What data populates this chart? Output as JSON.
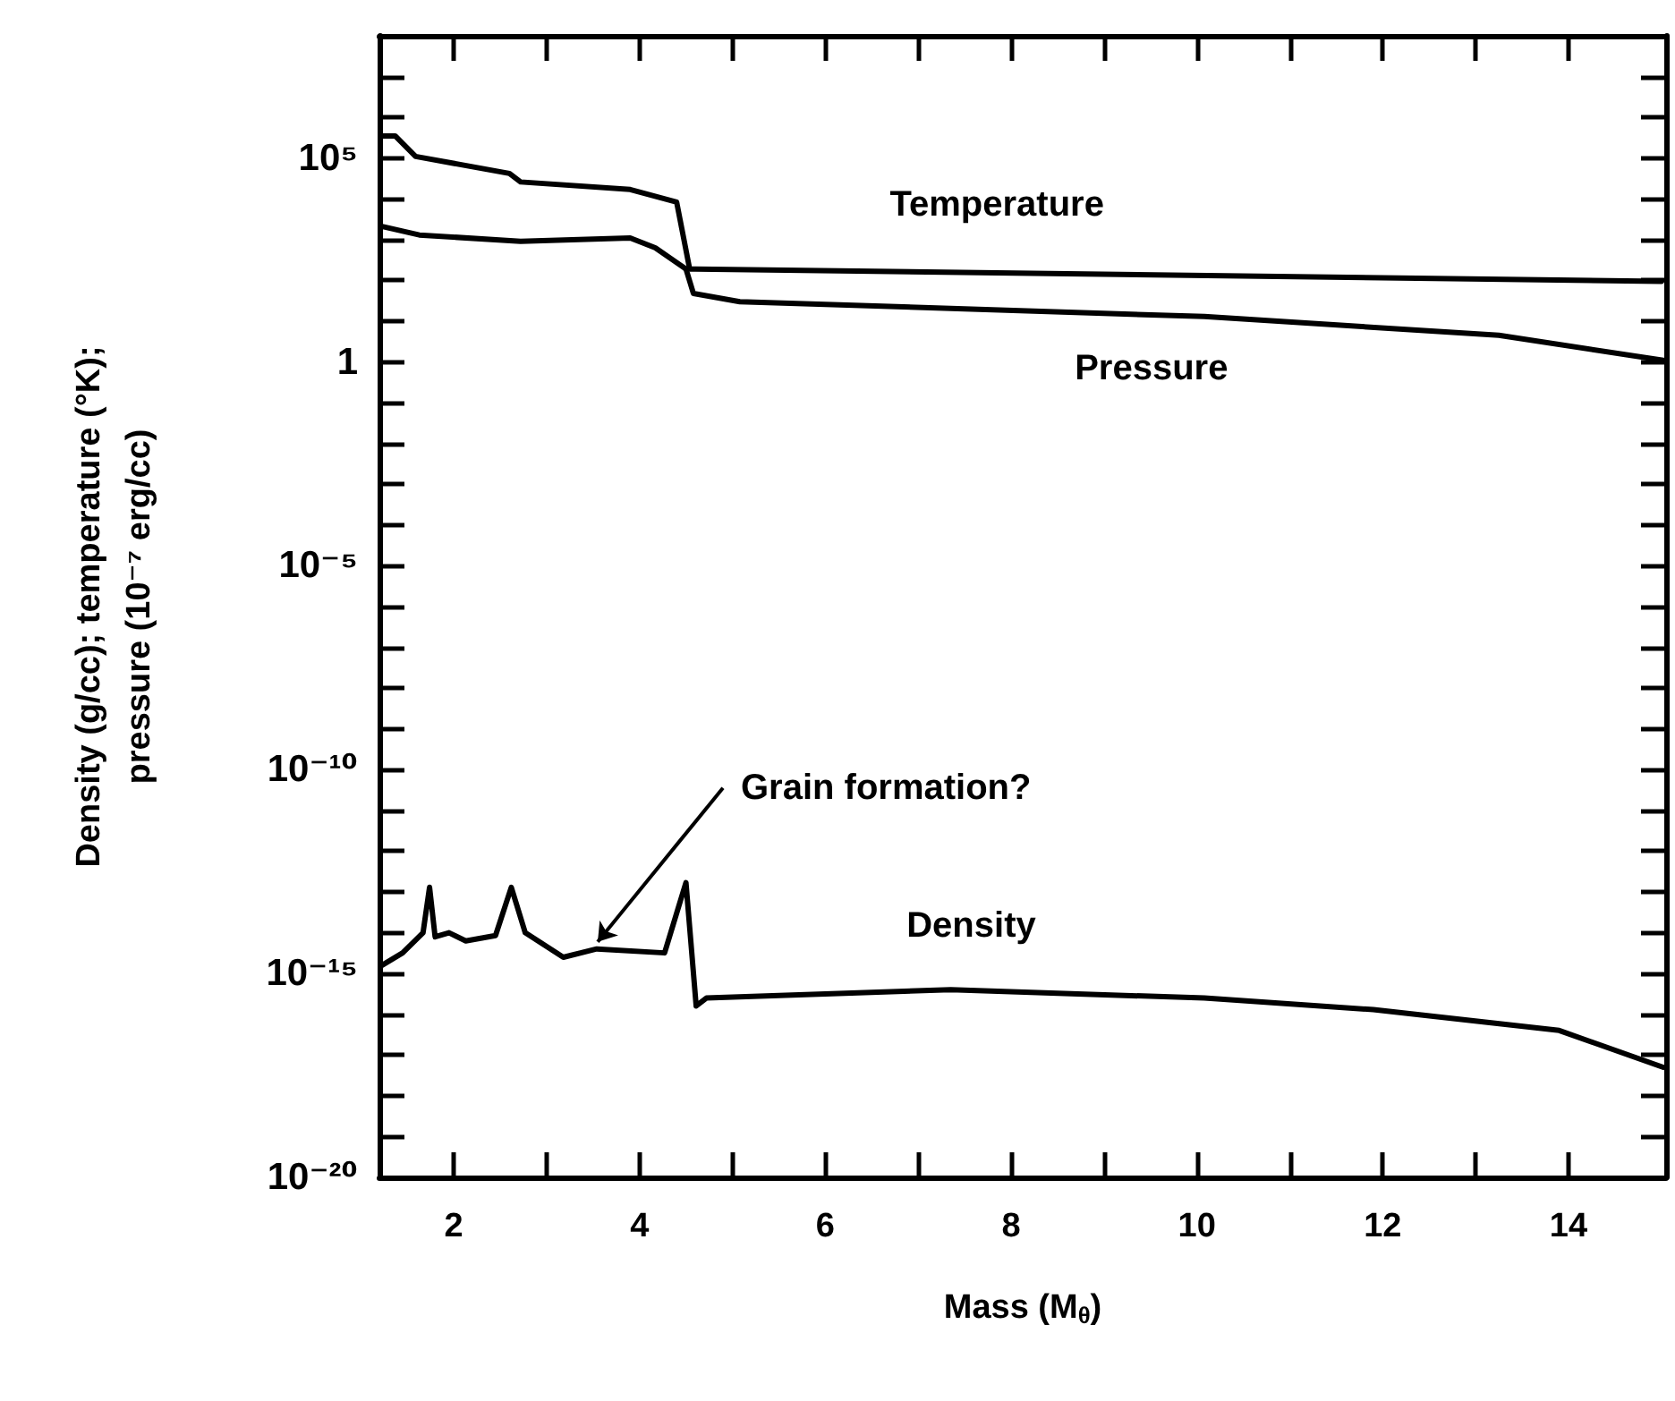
{
  "chart_data": {
    "type": "line",
    "xlabel": "Mass (M$_{θ}$)",
    "ylabel": "Density (g/cc); temperature (°K);\npressure (10⁻⁷ erg/cc)",
    "log": "y",
    "xlim": [
      1.2,
      15.05
    ],
    "ylim": [
      1e-20,
      100000000.0
    ],
    "xticks": [
      2,
      {
        "value": 3,
        "label": null
      },
      4,
      {
        "value": 5,
        "label": null
      },
      6,
      {
        "value": 7,
        "label": null
      },
      8,
      {
        "value": 9,
        "label": null
      },
      10,
      {
        "value": 11,
        "label": null
      },
      12,
      {
        "value": 13,
        "label": null
      },
      14
    ],
    "yticks": [
      {
        "value": 1e-20,
        "label": "10⁻²⁰"
      },
      {
        "value": 1e-19,
        "label": null
      },
      {
        "value": 1e-18,
        "label": null
      },
      {
        "value": 1e-17,
        "label": null
      },
      {
        "value": 1e-16,
        "label": null
      },
      {
        "value": 1e-15,
        "label": "10⁻¹⁵"
      },
      {
        "value": 1e-14,
        "label": null
      },
      {
        "value": 1e-13,
        "label": null
      },
      {
        "value": 1e-12,
        "label": null
      },
      {
        "value": 1e-11,
        "label": null
      },
      {
        "value": 1e-10,
        "label": "10⁻¹⁰"
      },
      {
        "value": 1e-09,
        "label": null
      },
      {
        "value": 1e-08,
        "label": null
      },
      {
        "value": 1e-07,
        "label": null
      },
      {
        "value": 1e-06,
        "label": null
      },
      {
        "value": 1e-05,
        "label": "10⁻⁵"
      },
      {
        "value": 0.0001,
        "label": null
      },
      {
        "value": 0.001,
        "label": null
      },
      {
        "value": 0.01,
        "label": null
      },
      {
        "value": 0.1,
        "label": null
      },
      1,
      {
        "value": 10,
        "label": null
      },
      {
        "value": 100,
        "label": null
      },
      {
        "value": 1000,
        "label": null
      },
      {
        "value": 10000,
        "label": null
      },
      {
        "value": 100000.0,
        "label": "10⁵"
      },
      {
        "value": 1000000.0,
        "label": null
      },
      {
        "value": 10000000.0,
        "label": null
      }
    ],
    "grid": false,
    "legend": false,
    "marker": "none",
    "line_style": "solid",
    "annotations": [
      {
        "text": "Grain formation?",
        "x": 3.55,
        "y": 4e-15
      }
    ],
    "series": [
      {
        "name": "Temperature",
        "color": "#000000",
        "x": [
          1.23,
          1.37,
          1.59,
          2.6,
          2.72,
          3.9,
          4.4,
          4.54,
          4.6,
          15.0
        ],
        "values": [
          350000.0,
          350000.0,
          110000.0,
          42000.0,
          26000.0,
          17000.0,
          8300.0,
          190,
          190,
          95
        ]
      },
      {
        "name": "Pressure",
        "color": "#000000",
        "x": [
          1.23,
          1.63,
          2.72,
          3.9,
          4.17,
          4.5,
          4.58,
          5.08,
          10.08,
          13.25,
          15.02
        ],
        "values": [
          2100,
          1300,
          910,
          1100,
          630,
          190,
          48,
          30,
          13,
          4.5,
          1.1
        ]
      },
      {
        "name": "Density",
        "color": "#000000",
        "x": [
          1.23,
          1.45,
          1.67,
          1.74,
          1.8,
          1.95,
          2.13,
          2.45,
          2.62,
          2.77,
          3.18,
          3.54,
          4.27,
          4.5,
          4.61,
          4.72,
          7.35,
          10.08,
          11.9,
          13.9,
          15.02
        ],
        "values": [
          1.6e-15,
          3.2e-15,
          1e-14,
          1.3e-13,
          7.9e-15,
          1e-14,
          6.3e-15,
          8.5e-15,
          1.3e-13,
          1e-14,
          2.5e-15,
          4e-15,
          3.2e-15,
          1.7e-13,
          1.6e-16,
          2.5e-16,
          4e-16,
          2.5e-16,
          1.3e-16,
          4e-17,
          5e-18
        ]
      }
    ]
  }
}
